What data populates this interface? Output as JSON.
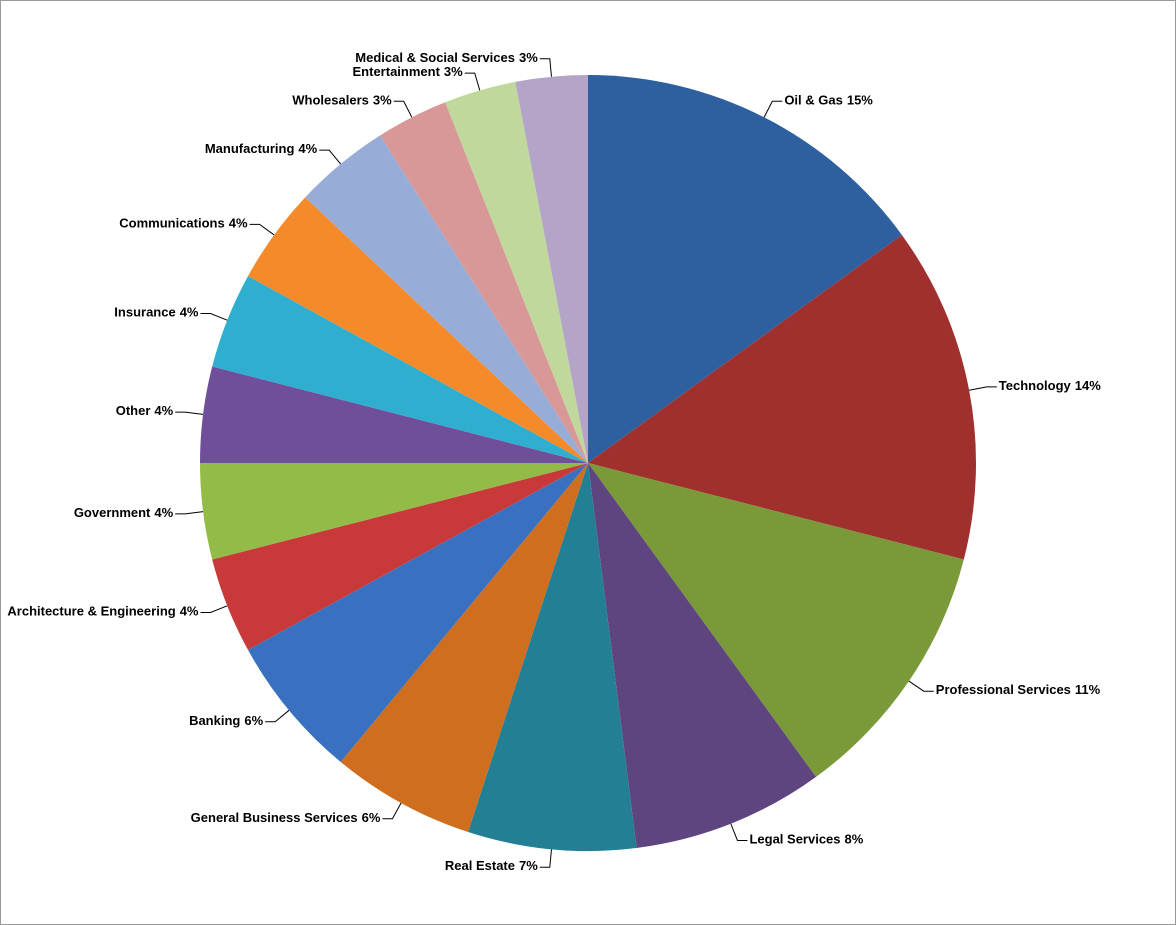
{
  "chart_data": {
    "type": "pie",
    "categories": [
      "Oil & Gas",
      "Technology",
      "Professional Services",
      "Legal Services",
      "Real Estate",
      "General Business Services",
      "Banking",
      "Architecture & Engineering",
      "Government",
      "Other",
      "Insurance",
      "Communications",
      "Manufacturing",
      "Wholesalers",
      "Entertainment",
      "Medical & Social Services"
    ],
    "values": [
      15,
      14,
      11,
      8,
      7,
      6,
      6,
      4,
      4,
      4,
      4,
      4,
      4,
      3,
      3,
      3
    ],
    "value_labels": [
      "15%",
      "14%",
      "11%",
      "8%",
      "7%",
      "6%",
      "6%",
      "4%",
      "4%",
      "4%",
      "4%",
      "4%",
      "4%",
      "3%",
      "3%",
      "3%"
    ],
    "colors": [
      "#2e5f9e",
      "#a0302e",
      "#7a9a3a",
      "#5f457f",
      "#237f94",
      "#cf6e1e",
      "#3a70c0",
      "#c83a3a",
      "#93bb48",
      "#6f4f9a",
      "#30aed0",
      "#f58a2a",
      "#98acd8",
      "#d89898",
      "#c0d89c",
      "#b4a4c8"
    ]
  }
}
